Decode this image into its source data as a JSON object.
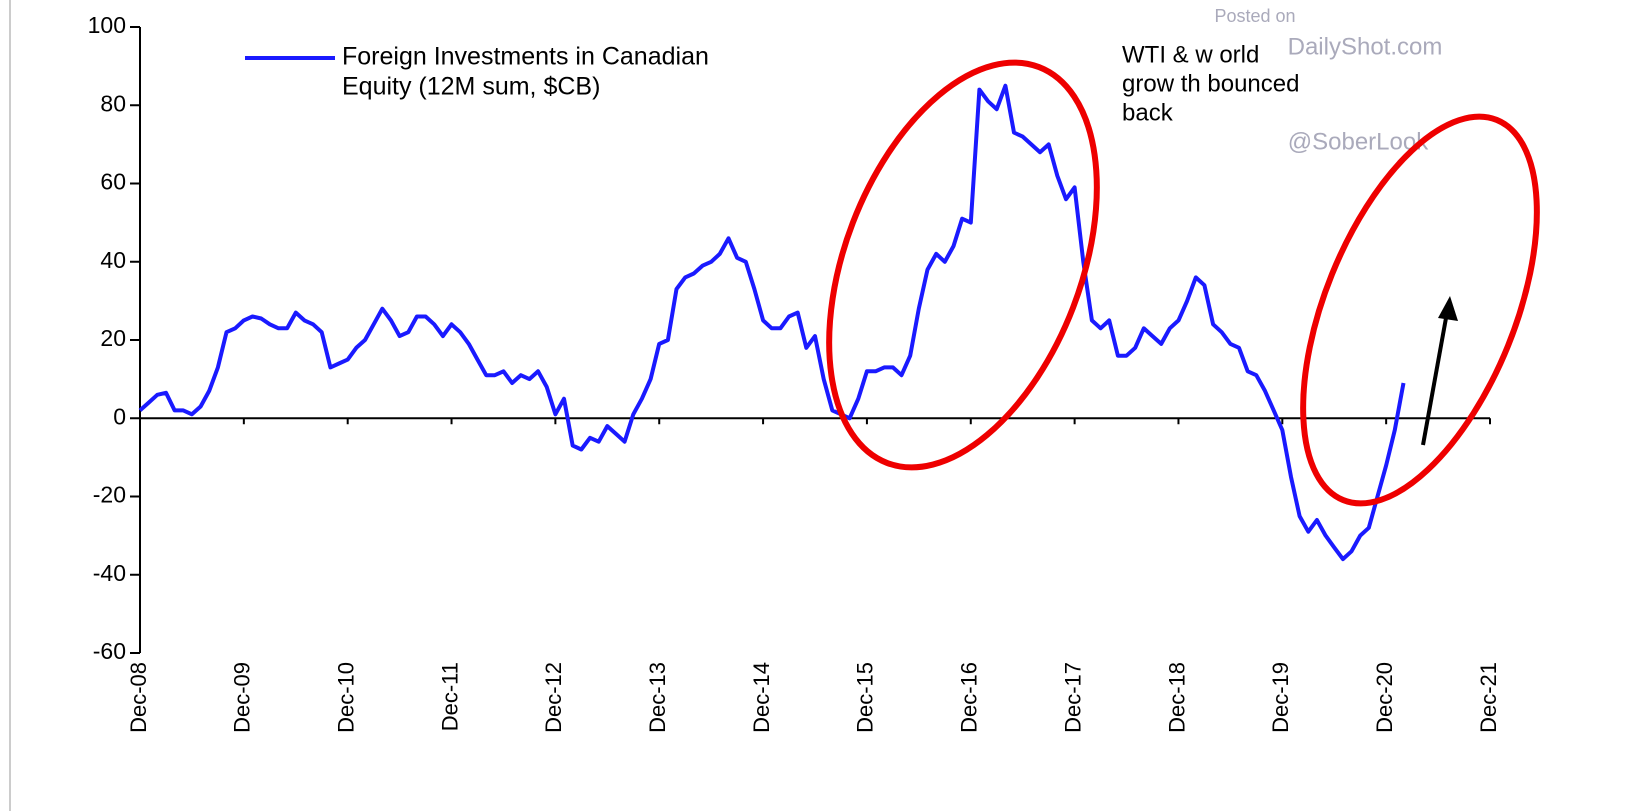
{
  "chart_data": {
    "type": "line",
    "legend_lines": [
      "Foreign Investments in Canadian",
      "Equity (12M sum, $CB)"
    ],
    "annotation_lines": [
      "WTI & w orld",
      "grow th bounced",
      "back"
    ],
    "watermark": [
      "Posted on",
      "DailyShot.com",
      "@SoberLook"
    ],
    "categories": [
      "Dec-08",
      null,
      null,
      null,
      null,
      null,
      null,
      null,
      null,
      null,
      null,
      null,
      "Dec-09",
      null,
      null,
      null,
      null,
      null,
      null,
      null,
      null,
      null,
      null,
      null,
      "Dec-10",
      null,
      null,
      null,
      null,
      null,
      null,
      null,
      null,
      null,
      null,
      null,
      "Dec-11",
      null,
      null,
      null,
      null,
      null,
      null,
      null,
      null,
      null,
      null,
      null,
      "Dec-12",
      null,
      null,
      null,
      null,
      null,
      null,
      null,
      null,
      null,
      null,
      null,
      "Dec-13",
      null,
      null,
      null,
      null,
      null,
      null,
      null,
      null,
      null,
      null,
      null,
      "Dec-14",
      null,
      null,
      null,
      null,
      null,
      null,
      null,
      null,
      null,
      null,
      null,
      "Dec-15",
      null,
      null,
      null,
      null,
      null,
      null,
      null,
      null,
      null,
      null,
      null,
      "Dec-16",
      null,
      null,
      null,
      null,
      null,
      null,
      null,
      null,
      null,
      null,
      null,
      "Dec-17",
      null,
      null,
      null,
      null,
      null,
      null,
      null,
      null,
      null,
      null,
      null,
      "Dec-18",
      null,
      null,
      null,
      null,
      null,
      null,
      null,
      null,
      null,
      null,
      null,
      "Dec-19",
      null,
      null,
      null,
      null,
      null,
      null,
      null,
      null,
      null,
      null,
      null,
      "Dec-20",
      null,
      null,
      null,
      null,
      null,
      null,
      null,
      null,
      null,
      null,
      null,
      "Dec-21"
    ],
    "series": [
      {
        "name": "Foreign Investments in Canadian Equity (12M sum, $CB)",
        "color": "#1a1aff",
        "values": [
          2,
          4,
          6,
          6.5,
          2,
          2,
          1,
          3,
          7,
          13,
          22,
          23,
          25,
          26,
          25.5,
          24,
          23,
          23,
          27,
          25,
          24,
          22,
          13,
          14,
          15,
          18,
          20,
          24,
          28,
          25,
          21,
          22,
          26,
          26,
          24,
          21,
          24,
          22,
          19,
          15,
          11,
          11,
          12,
          9,
          11,
          10,
          12,
          8,
          1,
          5,
          -7,
          -8,
          -5,
          -6,
          -2,
          -4,
          -6,
          1,
          5,
          10,
          19,
          20,
          33,
          36,
          37,
          39,
          40,
          42,
          46,
          41,
          40,
          33,
          25,
          23,
          23,
          26,
          27,
          18,
          21,
          10,
          2,
          1,
          0,
          5,
          12,
          12,
          13,
          13,
          11,
          16,
          28,
          38,
          42,
          40,
          44,
          51,
          50,
          84,
          81,
          79,
          85,
          73,
          72,
          70,
          68,
          70,
          62,
          56,
          59,
          40,
          25,
          23,
          25,
          16,
          16,
          18,
          23,
          21,
          19,
          23,
          25,
          30,
          36,
          34,
          24,
          22,
          19,
          18,
          12,
          11,
          7,
          2,
          -3,
          -15,
          -25,
          -29,
          -26,
          -30,
          -33,
          -36,
          -34,
          -30,
          -28,
          -20,
          -12,
          -3,
          9,
          null,
          null,
          null,
          null,
          null,
          null,
          null,
          null,
          null,
          null
        ]
      }
    ],
    "ylim": [
      -60,
      100
    ],
    "yticks": [
      -60,
      -40,
      -20,
      0,
      20,
      40,
      60,
      80,
      100
    ],
    "grid": false
  }
}
